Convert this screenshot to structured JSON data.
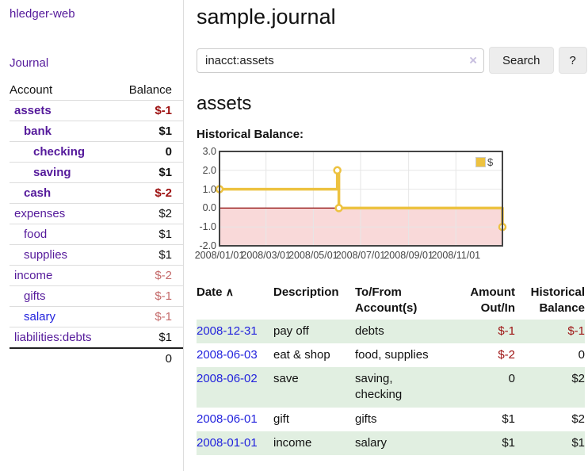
{
  "sidebar": {
    "brand": "hledger-web",
    "nav": [
      {
        "label": "Journal"
      }
    ],
    "accounts_table": {
      "headers": {
        "account": "Account",
        "balance": "Balance"
      },
      "rows": [
        {
          "name": "assets",
          "depth": 0,
          "bold": true,
          "balance": "$-1",
          "balance_style": "neg"
        },
        {
          "name": "bank",
          "depth": 1,
          "bold": true,
          "balance": "$1",
          "balance_style": "pos"
        },
        {
          "name": "checking",
          "depth": 2,
          "bold": true,
          "balance": "0",
          "balance_style": "pos"
        },
        {
          "name": "saving",
          "depth": 2,
          "bold": true,
          "balance": "$1",
          "balance_style": "pos"
        },
        {
          "name": "cash",
          "depth": 1,
          "bold": true,
          "balance": "$-2",
          "balance_style": "neg"
        },
        {
          "name": "expenses",
          "depth": 0,
          "bold": false,
          "balance": "$2",
          "balance_style": "pos"
        },
        {
          "name": "food",
          "depth": 1,
          "bold": false,
          "balance": "$1",
          "balance_style": "pos"
        },
        {
          "name": "supplies",
          "depth": 1,
          "bold": false,
          "balance": "$1",
          "balance_style": "pos"
        },
        {
          "name": "income",
          "depth": 0,
          "bold": false,
          "balance": "$-2",
          "balance_style": "neg-soft"
        },
        {
          "name": "gifts",
          "depth": 1,
          "bold": false,
          "balance": "$-1",
          "balance_style": "neg-soft"
        },
        {
          "name": "salary",
          "depth": 1,
          "bold": false,
          "balance": "$-1",
          "balance_style": "neg-soft",
          "unvisited": true
        },
        {
          "name": "liabilities:debts",
          "depth": 0,
          "bold": false,
          "balance": "$1",
          "balance_style": "pos"
        }
      ],
      "total": "0"
    }
  },
  "header": {
    "title": "sample.journal"
  },
  "search": {
    "value": "inacct:assets",
    "clear_icon": "×",
    "button_label": "Search",
    "help_label": "?"
  },
  "account_page": {
    "title": "assets",
    "chart_label": "Historical Balance:"
  },
  "chart_data": {
    "type": "line",
    "step": true,
    "title": "Historical Balance of assets",
    "series": [
      {
        "name": "$",
        "color": "#EDC240",
        "points": [
          {
            "date": "2008-01-01",
            "day": 0,
            "value": 1.0
          },
          {
            "date": "2008-06-01",
            "day": 152,
            "value": 2.0
          },
          {
            "date": "2008-06-03",
            "day": 154,
            "value": 0.0
          },
          {
            "date": "2008-12-31",
            "day": 365,
            "value": -1.0
          }
        ]
      }
    ],
    "x_ticks": [
      {
        "label": "2008/01/01",
        "day": 0
      },
      {
        "label": "2008/03/01",
        "day": 60
      },
      {
        "label": "2008/05/01",
        "day": 121
      },
      {
        "label": "2008/07/01",
        "day": 182
      },
      {
        "label": "2008/09/01",
        "day": 244
      },
      {
        "label": "2008/11/01",
        "day": 305
      }
    ],
    "x_range_days": [
      0,
      365
    ],
    "y_ticks": [
      3.0,
      2.0,
      1.0,
      0.0,
      -1.0,
      -2.0
    ],
    "ylim": [
      -2.0,
      3.0
    ],
    "grid": true,
    "legend_position": "top-right",
    "negative_fill": "#f9d9d9",
    "zero_line_color": "#8b0000",
    "grid_color": "#e6e6e6",
    "border_color": "#444444"
  },
  "register_table": {
    "headers": {
      "date": "Date",
      "sort_icon": "∧",
      "description": "Description",
      "accounts": "To/From Account(s)",
      "amount": "Amount Out/In",
      "balance": "Historical Balance"
    },
    "rows": [
      {
        "date": "2008-12-31",
        "description": "pay off",
        "accounts": "debts",
        "amount": "$-1",
        "amount_neg": true,
        "balance": "$-1",
        "balance_neg": true
      },
      {
        "date": "2008-06-03",
        "description": "eat & shop",
        "accounts": "food, supplies",
        "amount": "$-2",
        "amount_neg": true,
        "balance": "0",
        "balance_neg": false
      },
      {
        "date": "2008-06-02",
        "description": "save",
        "accounts": "saving, checking",
        "amount": "0",
        "amount_neg": false,
        "balance": "$2",
        "balance_neg": false
      },
      {
        "date": "2008-06-01",
        "description": "gift",
        "accounts": "gifts",
        "amount": "$1",
        "amount_neg": false,
        "balance": "$2",
        "balance_neg": false
      },
      {
        "date": "2008-01-01",
        "description": "income",
        "accounts": "salary",
        "amount": "$1",
        "amount_neg": false,
        "balance": "$1",
        "balance_neg": false
      }
    ]
  }
}
